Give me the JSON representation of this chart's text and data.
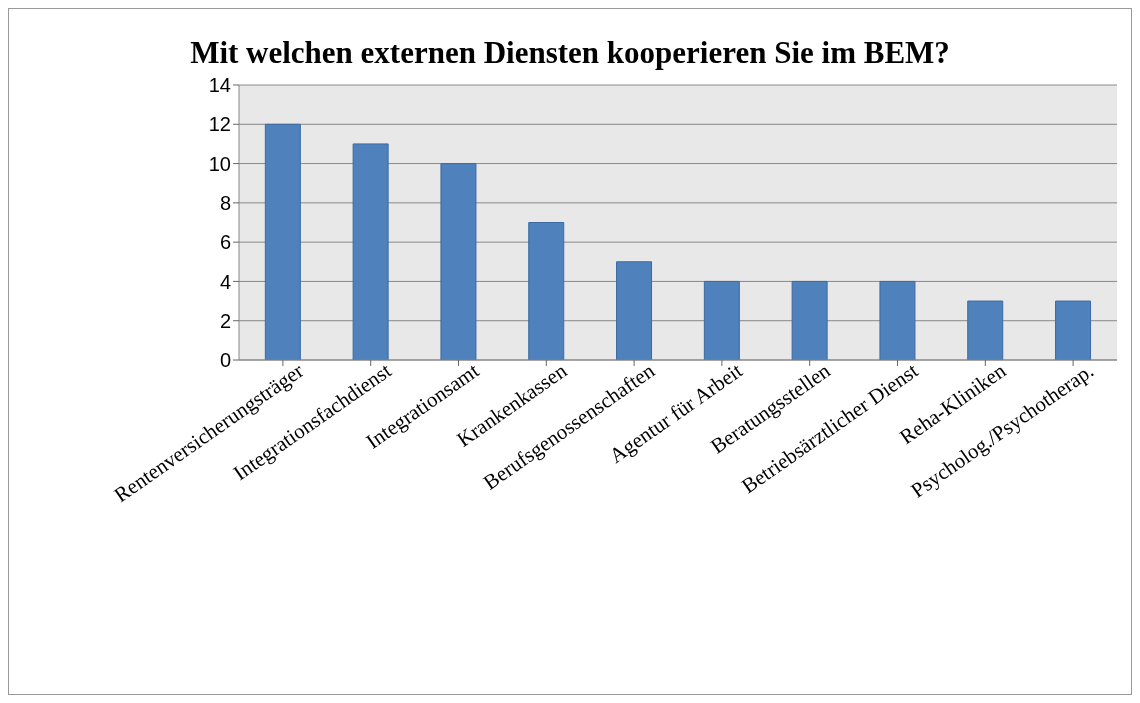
{
  "chart_data": {
    "type": "bar",
    "title": "Mit welchen externen Diensten kooperieren Sie im BEM?",
    "categories": [
      "Rentenversicherungsträger",
      "Integrationsfachdienst",
      "Integrationsamt",
      "Krankenkassen",
      "Berufsgenossenschaften",
      "Agentur für Arbeit",
      "Beratungsstellen",
      "Betriebsärztlicher Dienst",
      "Reha-Kliniken",
      "Psycholog./Psychotherap."
    ],
    "values": [
      12,
      11,
      10,
      7,
      5,
      4,
      4,
      4,
      3,
      3
    ],
    "color": "#4f81bd",
    "ylim": [
      0,
      14
    ],
    "yticks": [
      0,
      2,
      4,
      6,
      8,
      10,
      12,
      14
    ],
    "grid": "y",
    "legend": false
  }
}
